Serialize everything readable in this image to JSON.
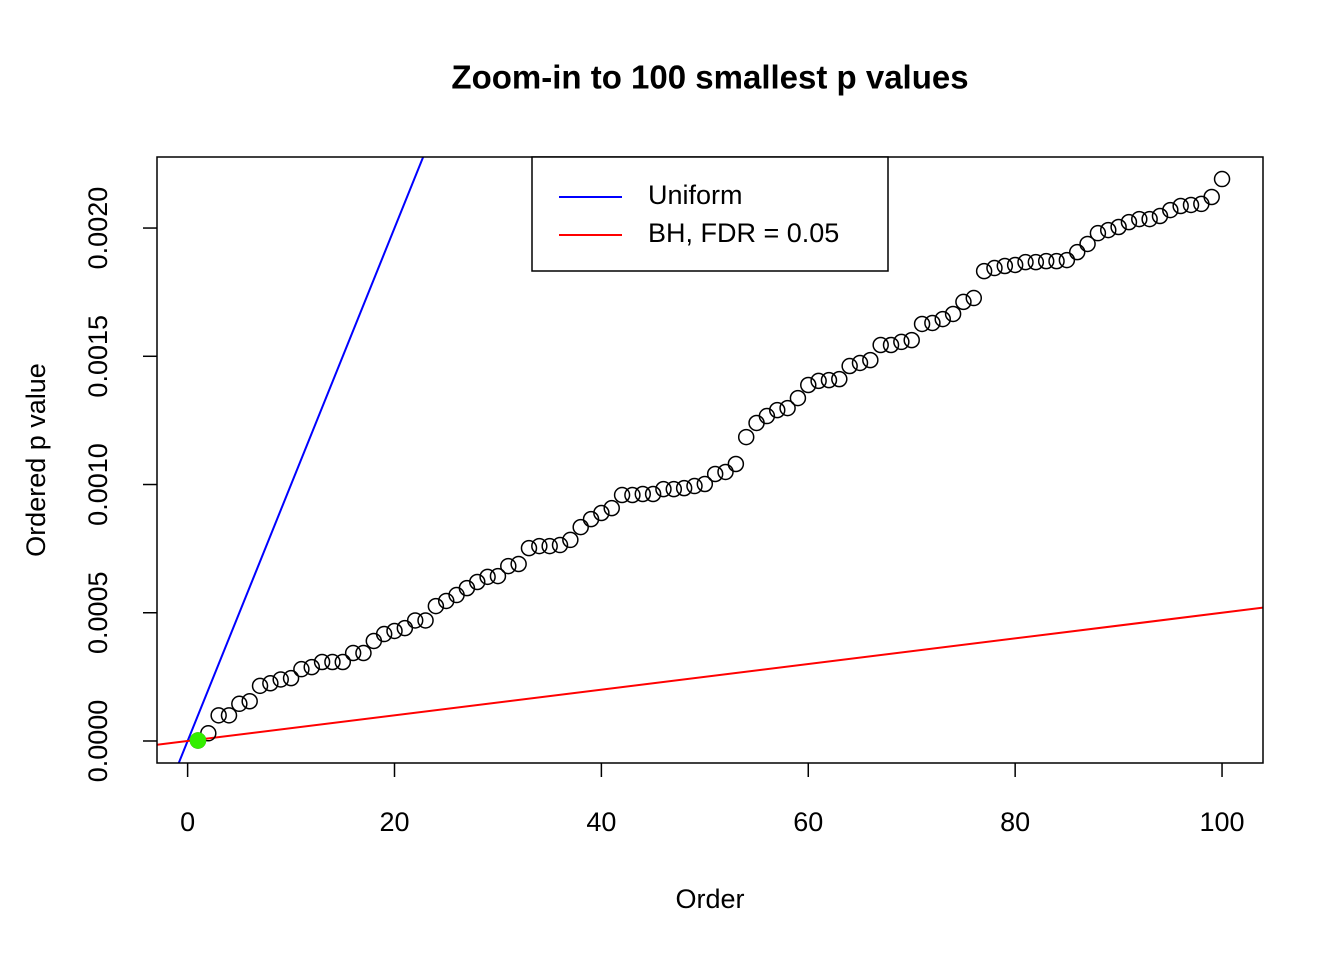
{
  "chart_data": {
    "type": "scatter",
    "title": "Zoom-in to 100 smallest p values",
    "x_label": "Order",
    "y_label": "Ordered p value",
    "xlim": [
      -2.96,
      103.96
    ],
    "ylim": [
      -8.58e-05,
      0.002277
    ],
    "xticks": [
      0,
      20,
      40,
      60,
      80,
      100
    ],
    "yticks": [
      {
        "value": 0,
        "label": "0.0000"
      },
      {
        "value": 0.0005,
        "label": "0.0005"
      },
      {
        "value": 0.001,
        "label": "0.0010"
      },
      {
        "value": 0.0015,
        "label": "0.0015"
      },
      {
        "value": 0.002,
        "label": "0.0020"
      }
    ],
    "legend": "top",
    "series": [
      {
        "color": "black",
        "filled": false,
        "x": [
          1,
          2,
          3,
          4,
          5,
          6,
          7,
          8,
          9,
          10,
          11,
          12,
          13,
          14,
          15,
          16,
          17,
          18,
          19,
          20,
          21,
          22,
          23,
          24,
          25,
          26,
          27,
          28,
          29,
          30,
          31,
          32,
          33,
          34,
          35,
          36,
          37,
          38,
          39,
          40,
          41,
          42,
          43,
          44,
          45,
          46,
          47,
          48,
          49,
          50,
          51,
          52,
          53,
          54,
          55,
          56,
          57,
          58,
          59,
          60,
          61,
          62,
          63,
          64,
          65,
          66,
          67,
          68,
          69,
          70,
          71,
          72,
          73,
          74,
          75,
          76,
          77,
          78,
          79,
          80,
          81,
          82,
          83,
          84,
          85,
          86,
          87,
          88,
          89,
          90,
          91,
          92,
          93,
          94,
          95,
          96,
          97,
          98,
          99,
          100
        ],
        "values": [
          2e-06,
          3e-05,
          0.0001,
          0.0001,
          0.000145,
          0.000155,
          0.000215,
          0.000225,
          0.00024,
          0.000245,
          0.00028,
          0.000288,
          0.000308,
          0.000308,
          0.000308,
          0.000343,
          0.000343,
          0.00039,
          0.000417,
          0.000429,
          0.00044,
          0.00047,
          0.00047,
          0.000526,
          0.000546,
          0.000569,
          0.000596,
          0.00062,
          0.00064,
          0.000643,
          0.000682,
          0.00069,
          0.000752,
          0.00076,
          0.00076,
          0.000764,
          0.000784,
          0.000834,
          0.000865,
          0.000889,
          0.000908,
          0.000959,
          0.000959,
          0.000963,
          0.000963,
          0.000982,
          0.000982,
          0.000986,
          0.000994,
          0.001002,
          0.001041,
          0.001049,
          0.00108,
          0.001185,
          0.00124,
          0.001267,
          0.00129,
          0.001298,
          0.001337,
          0.001388,
          0.001404,
          0.001407,
          0.001411,
          0.001462,
          0.001474,
          0.001485,
          0.001544,
          0.001544,
          0.001556,
          0.001563,
          0.001626,
          0.00163,
          0.001645,
          0.001665,
          0.001712,
          0.001727,
          0.001832,
          0.001844,
          0.001852,
          0.001856,
          0.001867,
          0.001867,
          0.001871,
          0.001871,
          0.001875,
          0.001906,
          0.001938,
          0.00198,
          0.001992,
          0.002004,
          0.002023,
          0.002035,
          0.002035,
          0.002047,
          0.00207,
          0.002086,
          0.00209,
          0.002094,
          0.002121,
          0.002191
        ]
      },
      {
        "color": "#33ee00",
        "filled": true,
        "x": [
          1
        ],
        "values": [
          2e-06
        ]
      }
    ],
    "lines": [
      {
        "name": "Uniform",
        "color": "blue",
        "intercept": 0,
        "slope": 0.0001
      },
      {
        "name": "BH, FDR = 0.05",
        "color": "red",
        "intercept": 0,
        "slope": 5e-06
      }
    ]
  }
}
